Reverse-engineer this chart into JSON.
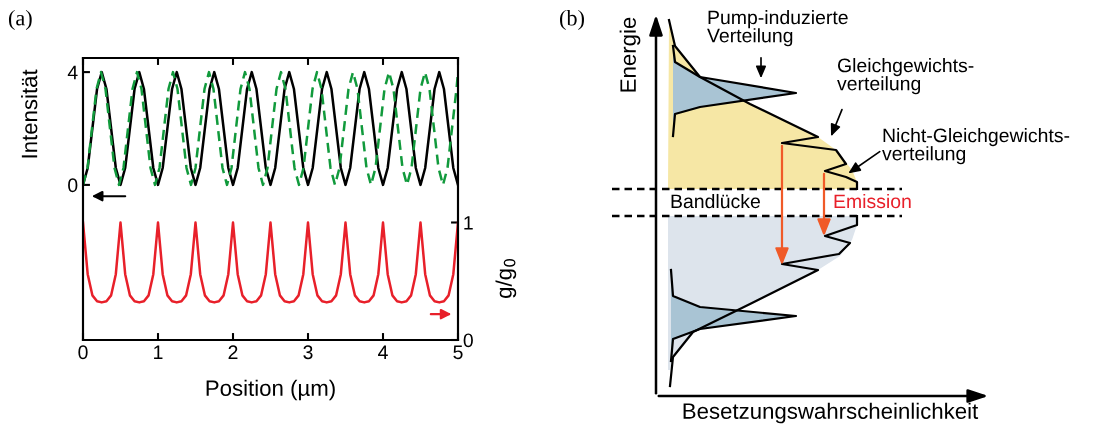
{
  "chart_data": [
    {
      "type": "line",
      "title": "(a)",
      "xlabel": "Position (µm)",
      "ylabel": "Intensität",
      "y2label": "g/g$_{0}$",
      "xlim": [
        0,
        5
      ],
      "xticks": [
        0,
        1,
        2,
        3,
        4,
        5
      ],
      "ylim": [
        -5.5,
        4.5
      ],
      "yticks": [
        0,
        4
      ],
      "y2lim": [
        0,
        2.4
      ],
      "y2ticks": [
        0,
        1
      ],
      "legend": false,
      "grid": false,
      "marker": "none",
      "series": [
        {
          "color": "#000000",
          "line_style": "solid",
          "x": [
            0,
            0.0625,
            0.125,
            0.1875,
            0.25,
            0.3125,
            0.375,
            0.4375,
            0.5,
            0.5625,
            0.625,
            0.6875,
            0.75,
            0.8125,
            0.875,
            0.9375,
            1,
            1.0625,
            1.125,
            1.1875,
            1.25,
            1.3125,
            1.375,
            1.4375,
            1.5,
            1.5625,
            1.625,
            1.6875,
            1.75,
            1.8125,
            1.875,
            1.9375,
            2,
            2.0625,
            2.125,
            2.1875,
            2.25,
            2.3125,
            2.375,
            2.4375,
            2.5,
            2.5625,
            2.625,
            2.6875,
            2.75,
            2.8125,
            2.875,
            2.9375,
            3,
            3.0625,
            3.125,
            3.1875,
            3.25,
            3.3125,
            3.375,
            3.4375,
            3.5,
            3.5625,
            3.625,
            3.6875,
            3.75,
            3.8125,
            3.875,
            3.9375,
            4,
            4.0625,
            4.125,
            4.1875,
            4.25,
            4.3125,
            4.375,
            4.4375,
            4.5,
            4.5625,
            4.625,
            4.6875,
            4.75,
            4.8125,
            4.875,
            4.9375,
            5
          ],
          "values": [
            0,
            0.6,
            2,
            3.4,
            4,
            3.4,
            2,
            0.6,
            0,
            0.6,
            2,
            3.4,
            4,
            3.4,
            2,
            0.6,
            0,
            0.6,
            2,
            3.4,
            4,
            3.4,
            2,
            0.6,
            0,
            0.6,
            2,
            3.4,
            4,
            3.4,
            2,
            0.6,
            0,
            0.6,
            2,
            3.4,
            4,
            3.4,
            2,
            0.6,
            0,
            0.6,
            2,
            3.4,
            4,
            3.4,
            2,
            0.6,
            0,
            0.6,
            2,
            3.4,
            4,
            3.4,
            2,
            0.6,
            0,
            0.6,
            2,
            3.4,
            4,
            3.4,
            2,
            0.6,
            0,
            0.6,
            2,
            3.4,
            4,
            3.4,
            2,
            0.6,
            0,
            0.6,
            2,
            3.4,
            4,
            3.4,
            2,
            0.6,
            0
          ]
        },
        {
          "color": "#119a3c",
          "line_style": "dashed",
          "x": [
            0,
            0.06,
            0.12,
            0.18,
            0.24,
            0.3,
            0.36,
            0.42,
            0.48,
            0.54,
            0.6,
            0.66,
            0.72,
            0.78,
            0.84,
            0.9,
            0.96,
            1.02,
            1.08,
            1.14,
            1.2,
            1.26,
            1.32,
            1.38,
            1.44,
            1.5,
            1.56,
            1.62,
            1.68,
            1.74,
            1.8,
            1.86,
            1.92,
            1.98,
            2.04,
            2.1,
            2.16,
            2.22,
            2.28,
            2.34,
            2.4,
            2.46,
            2.52,
            2.58,
            2.64,
            2.7,
            2.76,
            2.82,
            2.88,
            2.94,
            3,
            3.06,
            3.12,
            3.18,
            3.24,
            3.3,
            3.36,
            3.42,
            3.48,
            3.54,
            3.6,
            3.66,
            3.72,
            3.78,
            3.84,
            3.9,
            3.96,
            4.02,
            4.08,
            4.14,
            4.2,
            4.26,
            4.32,
            4.38,
            4.44,
            4.5,
            4.56,
            4.62,
            4.68,
            4.74,
            4.8,
            4.86,
            4.92,
            4.98,
            5
          ],
          "values": [
            0,
            0.6,
            2,
            3.4,
            4,
            3.4,
            2,
            0.6,
            0,
            0.6,
            2,
            3.4,
            4,
            3.4,
            2,
            0.6,
            0,
            0.6,
            2,
            3.4,
            4,
            3.4,
            2,
            0.6,
            0,
            0.6,
            2,
            3.4,
            4,
            3.4,
            2,
            0.6,
            0,
            0.6,
            2,
            3.4,
            4,
            3.4,
            2,
            0.6,
            0,
            0.6,
            2,
            3.4,
            4,
            3.4,
            2,
            0.6,
            0,
            0.6,
            2,
            3.4,
            4,
            3.4,
            2,
            0.6,
            0,
            0.6,
            2,
            3.4,
            4,
            3.4,
            2,
            0.6,
            0,
            0.6,
            2,
            3.4,
            4,
            3.4,
            2,
            0.6,
            0,
            0.6,
            2,
            3.4,
            4,
            3.4,
            2,
            0.6,
            0,
            0.6,
            2,
            3.4,
            4
          ]
        },
        {
          "color": "#e8202a",
          "line_style": "solid",
          "axis": "y2",
          "x": [
            0,
            0.0625,
            0.125,
            0.1875,
            0.25,
            0.3125,
            0.375,
            0.4375,
            0.5,
            0.5625,
            0.625,
            0.6875,
            0.75,
            0.8125,
            0.875,
            0.9375,
            1,
            1.0625,
            1.125,
            1.1875,
            1.25,
            1.3125,
            1.375,
            1.4375,
            1.5,
            1.5625,
            1.625,
            1.6875,
            1.75,
            1.8125,
            1.875,
            1.9375,
            2,
            2.0625,
            2.125,
            2.1875,
            2.25,
            2.3125,
            2.375,
            2.4375,
            2.5,
            2.5625,
            2.625,
            2.6875,
            2.75,
            2.8125,
            2.875,
            2.9375,
            3,
            3.0625,
            3.125,
            3.1875,
            3.25,
            3.3125,
            3.375,
            3.4375,
            3.5,
            3.5625,
            3.625,
            3.6875,
            3.75,
            3.8125,
            3.875,
            3.9375,
            4,
            4.0625,
            4.125,
            4.1875,
            4.25,
            4.3125,
            4.375,
            4.4375,
            4.5,
            4.5625,
            4.625,
            4.6875,
            4.75,
            4.8125,
            4.875,
            4.9375,
            5
          ],
          "values": [
            1,
            0.56,
            0.38,
            0.33,
            0.32,
            0.33,
            0.38,
            0.56,
            1,
            0.56,
            0.38,
            0.33,
            0.32,
            0.33,
            0.38,
            0.56,
            1,
            0.56,
            0.38,
            0.33,
            0.32,
            0.33,
            0.38,
            0.56,
            1,
            0.56,
            0.38,
            0.33,
            0.32,
            0.33,
            0.38,
            0.56,
            1,
            0.56,
            0.38,
            0.33,
            0.32,
            0.33,
            0.38,
            0.56,
            1,
            0.56,
            0.38,
            0.33,
            0.32,
            0.33,
            0.38,
            0.56,
            1,
            0.56,
            0.38,
            0.33,
            0.32,
            0.33,
            0.38,
            0.56,
            1,
            0.56,
            0.38,
            0.33,
            0.32,
            0.33,
            0.38,
            0.56,
            1,
            0.56,
            0.38,
            0.33,
            0.32,
            0.33,
            0.38,
            0.56,
            1,
            0.56,
            0.38,
            0.33,
            0.32,
            0.33,
            0.38,
            0.56,
            1
          ]
        }
      ]
    },
    {
      "type": "other",
      "title": "(b)",
      "xlabel": "Besetzungswahrscheinlichkeit",
      "ylabel": "Energie",
      "annotations": [
        "Pump-induzierte\nVerteilung",
        "Gleichgewichts-\nverteilung",
        "Nicht-Gleichgewichts-\nverteilung",
        "Bandlücke",
        "Emission"
      ]
    }
  ]
}
